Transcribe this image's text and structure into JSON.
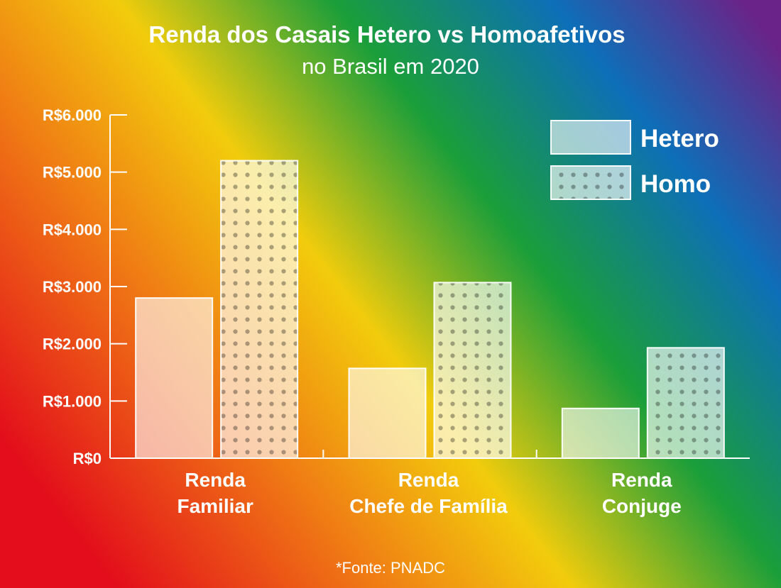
{
  "chart_data": {
    "type": "bar",
    "title": "Renda dos Casais Hetero vs Homoafetivos",
    "subtitle": "no Brasil em 2020",
    "categories": [
      [
        "Renda",
        "Familiar"
      ],
      [
        "Renda",
        "Chefe de Família"
      ],
      [
        "Renda",
        "Conjuge"
      ]
    ],
    "series": [
      {
        "name": "Hetero",
        "values": [
          2800,
          1570,
          870
        ],
        "pattern": "solid"
      },
      {
        "name": "Homo",
        "values": [
          5200,
          3070,
          1930
        ],
        "pattern": "dots"
      }
    ],
    "ylim": [
      0,
      6000
    ],
    "yticks": [
      0,
      1000,
      2000,
      3000,
      4000,
      5000,
      6000
    ],
    "ytick_labels": [
      "R$0",
      "R$1.000",
      "R$2.000",
      "R$3.000",
      "R$4.000",
      "R$5.000",
      "R$6.000"
    ],
    "legend_position": "top-right",
    "grid": false,
    "source": "*Fonte: PNADC",
    "background": "rainbow diagonal gradient",
    "colors": {
      "text": "#ffffff",
      "hetero_fill": "#ffffff",
      "dot_color": "#000000",
      "rainbow": [
        "#e30d1b",
        "#f07c14",
        "#f2cc0c",
        "#1a9e3a",
        "#0d6fb8",
        "#6a2388"
      ]
    }
  }
}
